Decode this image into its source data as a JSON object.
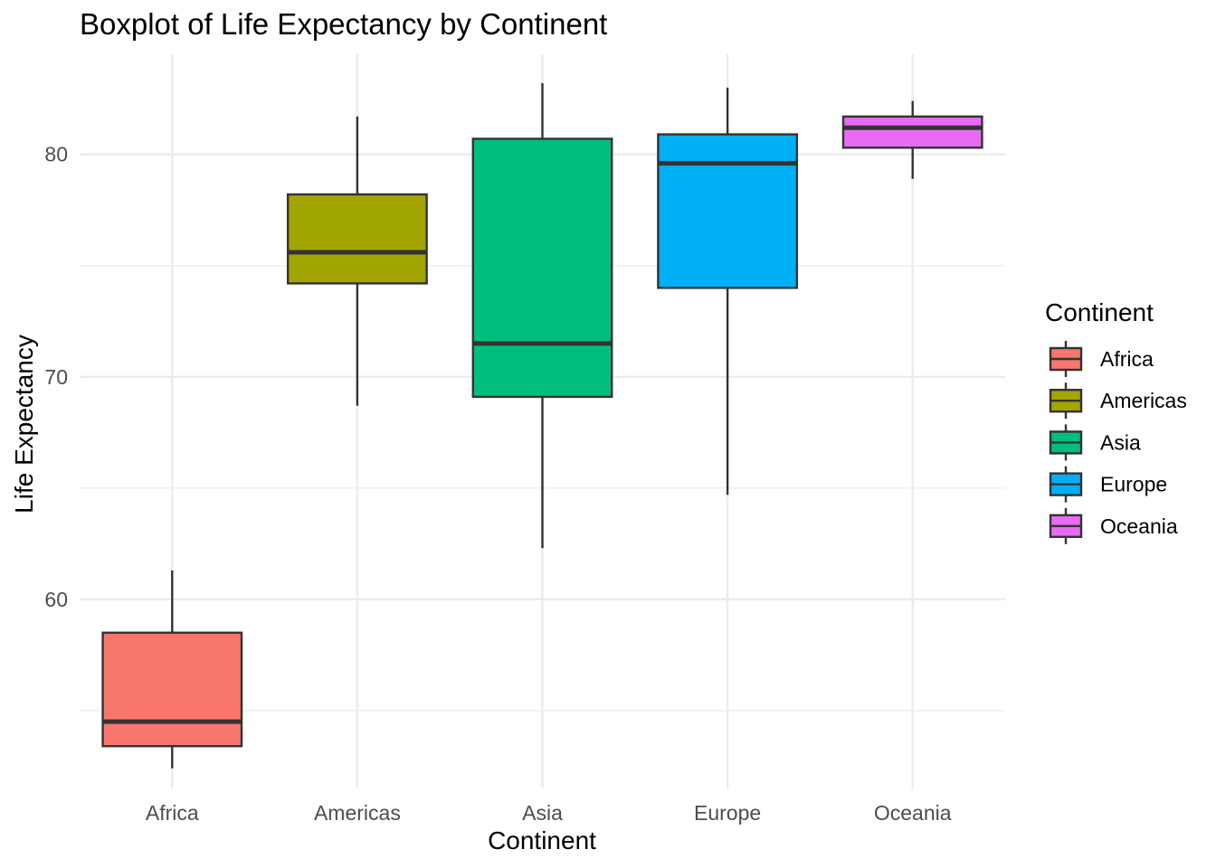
{
  "chart_data": {
    "type": "boxplot",
    "title": "Boxplot of Life Expectancy by Continent",
    "xlabel": "Continent",
    "ylabel": "Life Expectancy",
    "ylim": [
      51.5,
      84.5
    ],
    "yticks": [
      60,
      70,
      80
    ],
    "y_minor_ticks": [
      55,
      65,
      75
    ],
    "grid": true,
    "legend": {
      "title": "Continent",
      "placement": "right"
    },
    "categories": [
      "Africa",
      "Americas",
      "Asia",
      "Europe",
      "Oceania"
    ],
    "series": [
      {
        "name": "Africa",
        "color": "#F8766D",
        "min": 52.4,
        "q1": 53.4,
        "median": 54.5,
        "q3": 58.5,
        "max": 61.3
      },
      {
        "name": "Americas",
        "color": "#A3A500",
        "min": 68.7,
        "q1": 74.2,
        "median": 75.6,
        "q3": 78.2,
        "max": 81.7
      },
      {
        "name": "Asia",
        "color": "#00BF7D",
        "min": 62.3,
        "q1": 69.1,
        "median": 71.5,
        "q3": 80.7,
        "max": 83.2
      },
      {
        "name": "Europe",
        "color": "#00B0F6",
        "min": 64.7,
        "q1": 74.0,
        "median": 79.6,
        "q3": 80.9,
        "max": 83.0
      },
      {
        "name": "Oceania",
        "color": "#E76BF3",
        "min": 78.9,
        "q1": 80.3,
        "median": 81.2,
        "q3": 81.7,
        "max": 82.4
      }
    ]
  }
}
